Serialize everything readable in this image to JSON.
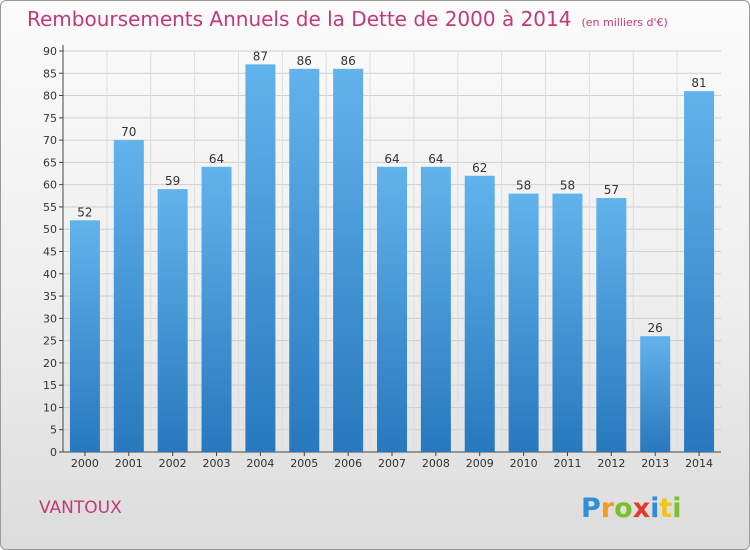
{
  "header": {
    "title": "Remboursements Annuels de la Dette de 2000 à 2014",
    "unit": "(en milliers d'€)"
  },
  "footer": {
    "town": "VANTOUX",
    "brand": "Proxiti"
  },
  "colors": {
    "title": "#c2387a",
    "bar_light": "#5fb0ea",
    "bar_dark": "#2a7fc4",
    "grid": "#cfcfcf"
  },
  "chart_data": {
    "type": "bar",
    "title": "Remboursements Annuels de la Dette de 2000 à 2014",
    "subtitle": "(en milliers d'€)",
    "xlabel": "",
    "ylabel": "",
    "categories": [
      "2000",
      "2001",
      "2002",
      "2003",
      "2004",
      "2005",
      "2006",
      "2007",
      "2008",
      "2009",
      "2010",
      "2011",
      "2012",
      "2013",
      "2014"
    ],
    "values": [
      52,
      70,
      59,
      64,
      87,
      86,
      86,
      64,
      64,
      62,
      58,
      58,
      57,
      26,
      81
    ],
    "ylim": [
      0,
      90
    ],
    "yticks": [
      0,
      5,
      10,
      15,
      20,
      25,
      30,
      35,
      40,
      45,
      50,
      55,
      60,
      65,
      70,
      75,
      80,
      85,
      90
    ],
    "grid": true,
    "data_labels": true
  }
}
